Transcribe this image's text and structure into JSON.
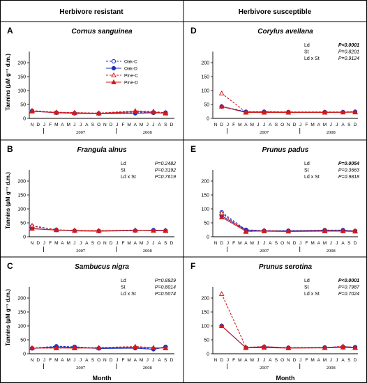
{
  "headers": {
    "left": "Herbivore resistant",
    "right": "Herbivore susceptible"
  },
  "x_axis_label": "Month",
  "y_axis_label": "Tannins (μM g⁻¹ d.m.)",
  "month_ticks": [
    "N",
    "D",
    "J",
    "F",
    "M",
    "A",
    "M",
    "J",
    "J",
    "A",
    "S",
    "O",
    "N",
    "D",
    "J",
    "F",
    "M",
    "A",
    "M",
    "J",
    "J",
    "A",
    "S",
    "D"
  ],
  "year_labels": [
    "2007",
    "2008"
  ],
  "colors": {
    "oak": "#1f2fbf",
    "pine": "#d11a1a"
  },
  "chart_data": [
    {
      "type": "line",
      "letter": "A",
      "title": "Cornus sanguinea",
      "ylim": [
        0,
        200
      ],
      "yticks": [
        0,
        50,
        100,
        150,
        200
      ],
      "x": [
        1,
        5,
        8,
        12,
        18,
        21,
        23
      ],
      "legend": [
        "Oak-C",
        "Oak-D",
        "Pine-C",
        "Pine-D"
      ],
      "stats": [],
      "series": [
        {
          "name": "Oak-C",
          "values": [
            27,
            21,
            19,
            18,
            20,
            22,
            21
          ]
        },
        {
          "name": "Oak-D",
          "values": [
            26,
            20,
            18,
            17,
            18,
            20,
            19
          ]
        },
        {
          "name": "Pine-C",
          "values": [
            28,
            22,
            21,
            19,
            27,
            25,
            20
          ]
        },
        {
          "name": "Pine-D",
          "values": [
            25,
            21,
            20,
            18,
            24,
            22,
            18
          ]
        }
      ]
    },
    {
      "type": "line",
      "letter": "B",
      "title": "Frangula alnus",
      "ylim": [
        0,
        200
      ],
      "yticks": [
        0,
        50,
        100,
        150,
        200
      ],
      "x": [
        1,
        5,
        8,
        12,
        18,
        21,
        23
      ],
      "legend": [],
      "stats": [
        [
          "Ld",
          "P=0.2482"
        ],
        [
          "St",
          "P=0.3192"
        ],
        [
          "Ld x St",
          "P=0.7619"
        ]
      ],
      "series": [
        {
          "name": "Oak-C",
          "values": [
            38,
            25,
            22,
            21,
            22,
            23,
            22
          ]
        },
        {
          "name": "Oak-D",
          "values": [
            30,
            24,
            21,
            20,
            22,
            24,
            22
          ]
        },
        {
          "name": "Pine-C",
          "values": [
            40,
            25,
            23,
            22,
            24,
            23,
            23
          ]
        },
        {
          "name": "Pine-D",
          "values": [
            29,
            24,
            22,
            21,
            23,
            22,
            21
          ]
        }
      ]
    },
    {
      "type": "line",
      "letter": "C",
      "title": "Sambucus nigra",
      "ylim": [
        0,
        200
      ],
      "yticks": [
        0,
        50,
        100,
        150,
        200
      ],
      "x": [
        1,
        5,
        8,
        12,
        18,
        21,
        23
      ],
      "legend": [],
      "stats": [
        [
          "Ld",
          "P=0.8929"
        ],
        [
          "St",
          "P=0.8014"
        ],
        [
          "Ld x St",
          "P=0.5074"
        ]
      ],
      "series": [
        {
          "name": "Oak-C",
          "values": [
            20,
            27,
            25,
            20,
            21,
            17,
            25
          ]
        },
        {
          "name": "Oak-D",
          "values": [
            19,
            25,
            23,
            19,
            20,
            16,
            24
          ]
        },
        {
          "name": "Pine-C",
          "values": [
            21,
            20,
            22,
            22,
            26,
            22,
            20
          ]
        },
        {
          "name": "Pine-D",
          "values": [
            20,
            21,
            20,
            21,
            24,
            21,
            21
          ]
        }
      ]
    },
    {
      "type": "line",
      "letter": "D",
      "title": "Corylus avellana",
      "ylim": [
        0,
        200
      ],
      "yticks": [
        0,
        50,
        100,
        150,
        200
      ],
      "x": [
        2,
        6,
        9,
        13,
        19,
        22,
        24
      ],
      "legend": [],
      "stats": [
        [
          "Ld",
          "P<0.0001"
        ],
        [
          "St",
          "P=0.8201"
        ],
        [
          "Ld x St",
          "P=0.9124"
        ]
      ],
      "series": [
        {
          "name": "Oak-C",
          "values": [
            43,
            24,
            24,
            23,
            23,
            23,
            24
          ]
        },
        {
          "name": "Oak-D",
          "values": [
            42,
            23,
            23,
            22,
            22,
            22,
            23
          ]
        },
        {
          "name": "Pine-C",
          "values": [
            90,
            22,
            22,
            21,
            22,
            22,
            23
          ]
        },
        {
          "name": "Pine-D",
          "values": [
            43,
            21,
            21,
            21,
            21,
            22,
            22
          ]
        }
      ]
    },
    {
      "type": "line",
      "letter": "E",
      "title": "Prunus padus",
      "ylim": [
        0,
        200
      ],
      "yticks": [
        0,
        50,
        100,
        150,
        200
      ],
      "x": [
        2,
        6,
        9,
        13,
        19,
        22,
        24
      ],
      "legend": [],
      "stats": [
        [
          "Ld",
          "P=0.0054"
        ],
        [
          "St",
          "P=0.3663"
        ],
        [
          "Ld x St",
          "P=0.9818"
        ]
      ],
      "series": [
        {
          "name": "Oak-C",
          "values": [
            88,
            25,
            22,
            22,
            24,
            24,
            20
          ]
        },
        {
          "name": "Oak-D",
          "values": [
            75,
            24,
            21,
            21,
            23,
            23,
            21
          ]
        },
        {
          "name": "Pine-C",
          "values": [
            85,
            18,
            22,
            20,
            22,
            21,
            21
          ]
        },
        {
          "name": "Pine-D",
          "values": [
            70,
            20,
            20,
            19,
            20,
            20,
            19
          ]
        }
      ]
    },
    {
      "type": "line",
      "letter": "F",
      "title": "Prunus serotina",
      "ylim": [
        0,
        200
      ],
      "yticks": [
        0,
        50,
        100,
        150,
        200
      ],
      "x": [
        2,
        6,
        9,
        13,
        19,
        22,
        24
      ],
      "legend": [],
      "stats": [
        [
          "Ld",
          "P<0.0001"
        ],
        [
          "St",
          "P=0.7987"
        ],
        [
          "Ld x St",
          "P=0.7024"
        ]
      ],
      "series": [
        {
          "name": "Oak-C",
          "values": [
            100,
            22,
            25,
            22,
            23,
            25,
            24
          ]
        },
        {
          "name": "Oak-D",
          "values": [
            100,
            21,
            23,
            21,
            22,
            23,
            22
          ]
        },
        {
          "name": "Pine-C",
          "values": [
            215,
            23,
            26,
            21,
            22,
            27,
            22
          ]
        },
        {
          "name": "Pine-D",
          "values": [
            100,
            21,
            22,
            20,
            21,
            23,
            21
          ]
        }
      ]
    }
  ]
}
